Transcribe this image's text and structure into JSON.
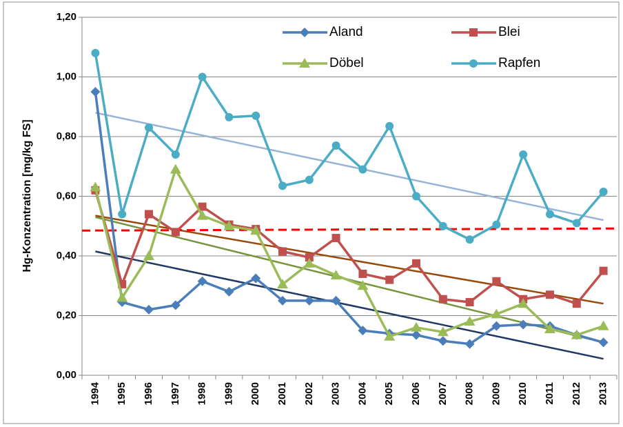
{
  "chart_data": {
    "type": "line",
    "y_label": "Hg-Konzentration [mg/kg FS]",
    "categories": [
      "1994",
      "1995",
      "1996",
      "1997",
      "1998",
      "1999",
      "2000",
      "2001",
      "2002",
      "2003",
      "2004",
      "2005",
      "2006",
      "2007",
      "2008",
      "2009",
      "2010",
      "2011",
      "2012",
      "2013"
    ],
    "series": [
      {
        "name": "Aland",
        "color": "#4a7ebb",
        "marker": "diamond",
        "values": [
          0.95,
          0.245,
          0.22,
          0.235,
          0.315,
          0.28,
          0.325,
          0.25,
          0.25,
          0.25,
          0.15,
          0.14,
          0.135,
          0.115,
          0.105,
          0.165,
          0.17,
          0.165,
          0.135,
          0.11
        ]
      },
      {
        "name": "Blei",
        "color": "#c0504d",
        "marker": "square",
        "values": [
          0.62,
          0.305,
          0.54,
          0.48,
          0.565,
          0.505,
          0.49,
          0.415,
          0.395,
          0.46,
          0.34,
          0.32,
          0.375,
          0.255,
          0.245,
          0.315,
          0.255,
          0.27,
          0.24,
          0.35
        ]
      },
      {
        "name": "Döbel",
        "color": "#9bbb59",
        "marker": "triangle",
        "values": [
          0.63,
          0.26,
          0.4,
          0.69,
          0.535,
          0.5,
          0.485,
          0.305,
          0.375,
          0.335,
          0.3,
          0.13,
          0.16,
          0.145,
          0.18,
          0.205,
          0.24,
          0.155,
          0.135,
          0.165
        ]
      },
      {
        "name": "Rapfen",
        "color": "#4bacc6",
        "marker": "circle",
        "values": [
          1.08,
          0.54,
          0.83,
          0.74,
          1.0,
          0.865,
          0.87,
          0.635,
          0.655,
          0.77,
          0.69,
          0.835,
          0.6,
          0.5,
          0.455,
          0.505,
          0.74,
          0.54,
          0.51,
          0.615
        ]
      }
    ],
    "trendlines": [
      {
        "color": "#1f3864",
        "values": [
          0.415,
          0.055
        ]
      },
      {
        "color": "#984807",
        "values": [
          0.535,
          0.24
        ]
      },
      {
        "color": "#77933c",
        "values": [
          0.53,
          0.11
        ]
      },
      {
        "color": "#95b3d7",
        "values": [
          0.88,
          0.52
        ]
      }
    ],
    "reference_line": {
      "color": "#ff0000",
      "values": [
        0.485,
        0.492
      ]
    },
    "ylim": [
      0,
      1.2
    ],
    "yticks": [
      {
        "value": 0,
        "label": "0,00"
      },
      {
        "value": 0.2,
        "label": "0,20"
      },
      {
        "value": 0.4,
        "label": "0,40"
      },
      {
        "value": 0.6,
        "label": "0,60"
      },
      {
        "value": 0.8,
        "label": "0,80"
      },
      {
        "value": 1.0,
        "label": "1,00"
      },
      {
        "value": 1.2,
        "label": "1,20"
      }
    ],
    "grid": true
  }
}
